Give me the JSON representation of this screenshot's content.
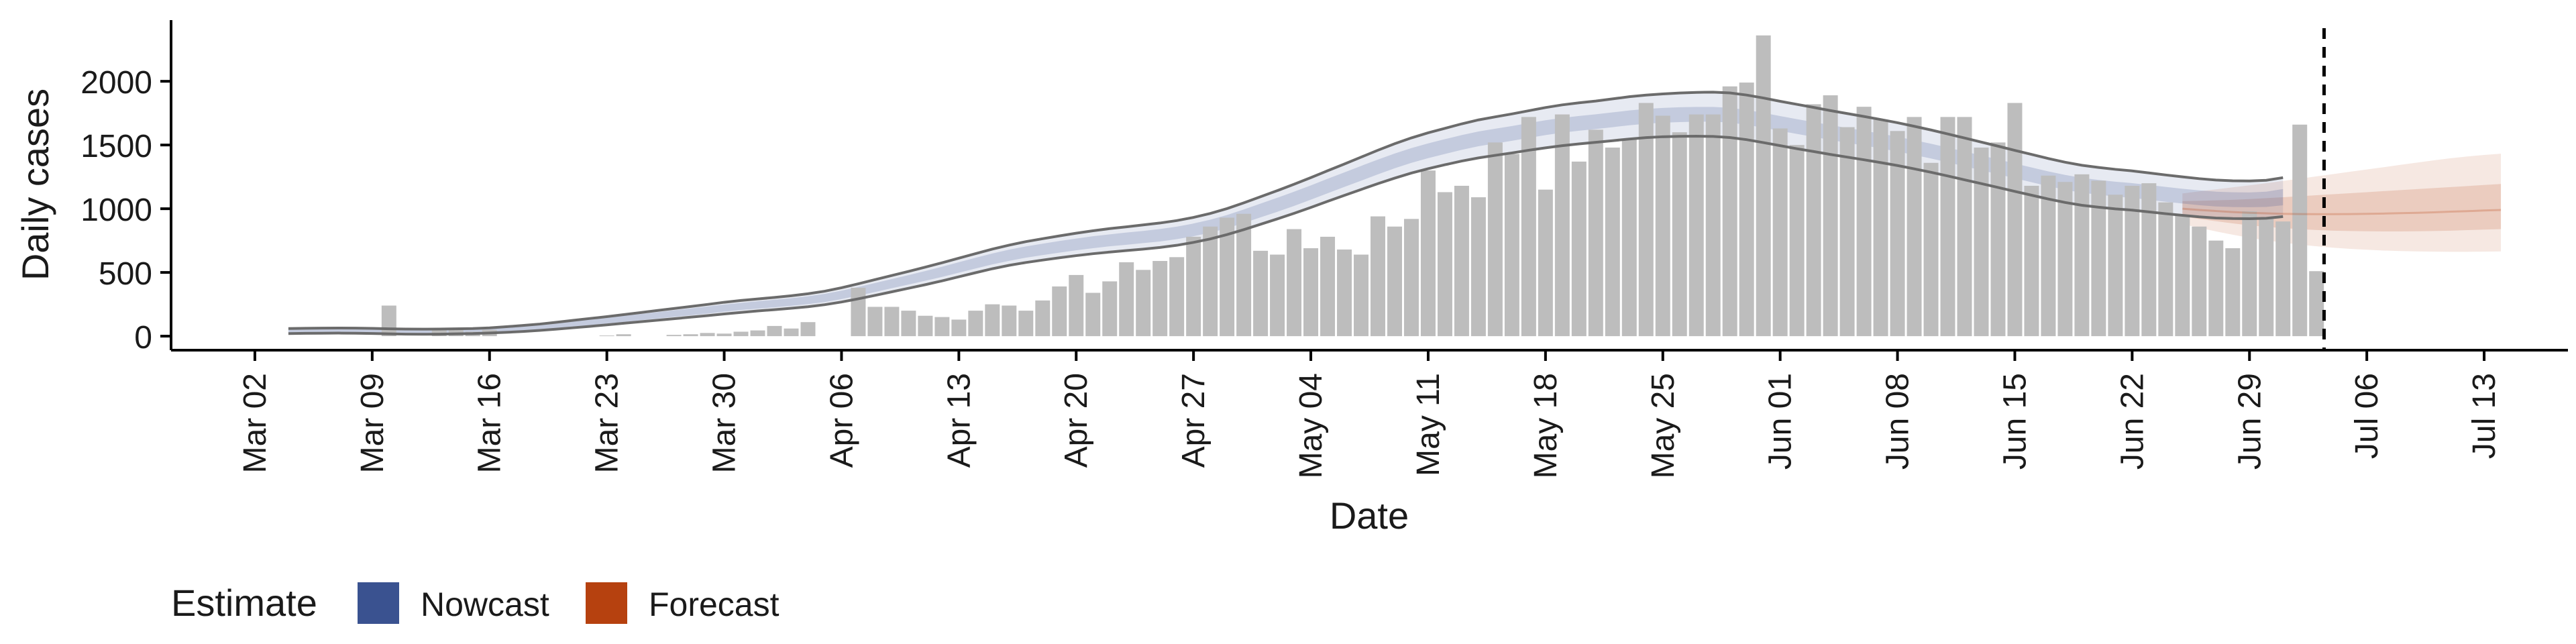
{
  "chart_data": {
    "type": "bar",
    "xlabel": "Date",
    "ylabel": "Daily cases",
    "x_ticks": [
      "2020-03-02",
      "2020-03-09",
      "2020-03-16",
      "2020-03-23",
      "2020-03-30",
      "2020-04-06",
      "2020-04-13",
      "2020-04-20",
      "2020-04-27",
      "2020-05-04",
      "2020-05-11",
      "2020-05-18",
      "2020-05-25",
      "2020-06-01",
      "2020-06-08",
      "2020-06-15",
      "2020-06-22",
      "2020-06-29",
      "2020-07-06",
      "2020-07-13"
    ],
    "x_tick_labels": [
      "Mar 02",
      "Mar 09",
      "Mar 16",
      "Mar 23",
      "Mar 30",
      "Apr 06",
      "Apr 13",
      "Apr 20",
      "Apr 27",
      "May 04",
      "May 11",
      "May 18",
      "May 25",
      "Jun 01",
      "Jun 08",
      "Jun 15",
      "Jun 22",
      "Jun 29",
      "Jul 06",
      "Jul 13"
    ],
    "xlim": [
      "2020-02-26",
      "2020-07-18"
    ],
    "y_ticks": [
      0,
      500,
      1000,
      1500,
      2000
    ],
    "ylim": [
      -110,
      2480
    ],
    "estimate_date": "2020-07-03",
    "grid": false,
    "legend": {
      "position": "bottom-left",
      "title": "Estimate",
      "items": [
        {
          "label": "Nowcast",
          "color": "#3a5290"
        },
        {
          "label": "Forecast",
          "color": "#b6410f"
        }
      ]
    },
    "bar_color": "#bdbdbd",
    "bars": {
      "start_date": "2020-03-02",
      "values": [
        0,
        0,
        0,
        0,
        0,
        0,
        0,
        0,
        240,
        0,
        0,
        60,
        55,
        35,
        50,
        0,
        0,
        0,
        0,
        0,
        0,
        5,
        15,
        0,
        0,
        10,
        15,
        25,
        20,
        35,
        45,
        80,
        60,
        110,
        0,
        0,
        380,
        230,
        230,
        200,
        160,
        150,
        130,
        200,
        250,
        240,
        200,
        280,
        390,
        480,
        340,
        430,
        580,
        520,
        590,
        620,
        780,
        860,
        930,
        960,
        670,
        640,
        840,
        690,
        780,
        680,
        640,
        940,
        860,
        920,
        1300,
        1130,
        1180,
        1090,
        1520,
        1430,
        1720,
        1150,
        1740,
        1370,
        1620,
        1480,
        1550,
        1830,
        1730,
        1600,
        1740,
        1740,
        1960,
        1990,
        2360,
        1630,
        1500,
        1820,
        1890,
        1640,
        1800,
        1700,
        1610,
        1720,
        1360,
        1720,
        1720,
        1480,
        1520,
        1830,
        1180,
        1260,
        1210,
        1270,
        1220,
        1110,
        1180,
        1200,
        1050,
        950,
        860,
        750,
        690,
        980,
        930,
        900,
        1660,
        510
      ]
    },
    "nowcast": {
      "start_date": "2020-03-04",
      "color": "#3a5290",
      "median": [
        40,
        42,
        43,
        44,
        43,
        41,
        38,
        36,
        35,
        36,
        38,
        40,
        45,
        52,
        60,
        70,
        82,
        95,
        108,
        121,
        135,
        149,
        163,
        177,
        191,
        205,
        220,
        233,
        245,
        256,
        268,
        282,
        300,
        324,
        352,
        382,
        412,
        442,
        473,
        505,
        539,
        573,
        606,
        635,
        660,
        681,
        701,
        720,
        737,
        752,
        765,
        778,
        792,
        810,
        834,
        863,
        899,
        941,
        986,
        1031,
        1078,
        1127,
        1178,
        1228,
        1278,
        1328,
        1375,
        1418,
        1455,
        1488,
        1520,
        1548,
        1570,
        1591,
        1614,
        1636,
        1655,
        1670,
        1683,
        1698,
        1713,
        1725,
        1733,
        1738,
        1741,
        1741,
        1734,
        1717,
        1694,
        1669,
        1645,
        1622,
        1598,
        1576,
        1554,
        1531,
        1507,
        1480,
        1452,
        1422,
        1391,
        1360,
        1329,
        1297,
        1266,
        1235,
        1207,
        1184,
        1168,
        1154,
        1143,
        1128,
        1113,
        1099,
        1086,
        1076,
        1071,
        1070,
        1074,
        1091
      ],
      "band50": {
        "lower_offset": [
          -18,
          -18,
          -18,
          -18,
          -18,
          -18,
          -18,
          -18,
          -18,
          -18,
          -18,
          -18,
          -18,
          -18,
          -20,
          -20,
          -20,
          -22,
          -22,
          -22,
          -24,
          -24,
          -25,
          -26,
          -27,
          -28,
          -28,
          -28,
          -29,
          -30,
          -30,
          -31,
          -32,
          -33,
          -34,
          -35,
          -36,
          -37,
          -38,
          -40,
          -41,
          -42,
          -43,
          -44,
          -44,
          -45,
          -46,
          -46,
          -47,
          -47,
          -48,
          -48,
          -49,
          -49,
          -50,
          -51,
          -52,
          -53,
          -54,
          -55,
          -56,
          -56,
          -57,
          -57,
          -58,
          -58,
          -58,
          -58,
          -58,
          -58,
          -58,
          -58,
          -58,
          -58,
          -58,
          -58,
          -58,
          -58,
          -58,
          -58,
          -58,
          -58,
          -58,
          -58,
          -58,
          -58,
          -58,
          -58,
          -58,
          -58,
          -58,
          -58,
          -58,
          -58,
          -58,
          -58,
          -58,
          -58,
          -58,
          -58,
          -58,
          -58,
          -58,
          -58,
          -58,
          -58,
          -58,
          -58,
          -58,
          -58,
          -58,
          -58,
          -58,
          -58,
          -58,
          -58,
          -58,
          -58,
          -60,
          -64
        ],
        "upper_offset": [
          18,
          18,
          18,
          18,
          18,
          18,
          18,
          18,
          18,
          18,
          18,
          18,
          18,
          18,
          20,
          20,
          20,
          22,
          22,
          22,
          24,
          24,
          25,
          26,
          27,
          28,
          28,
          28,
          29,
          30,
          30,
          31,
          32,
          33,
          34,
          35,
          36,
          37,
          38,
          40,
          41,
          42,
          43,
          44,
          44,
          45,
          46,
          46,
          47,
          47,
          48,
          48,
          49,
          49,
          50,
          51,
          52,
          53,
          54,
          55,
          56,
          56,
          57,
          57,
          58,
          58,
          58,
          58,
          58,
          58,
          58,
          58,
          58,
          58,
          58,
          58,
          58,
          58,
          58,
          58,
          58,
          58,
          58,
          58,
          58,
          58,
          58,
          58,
          58,
          58,
          58,
          58,
          58,
          58,
          58,
          58,
          58,
          58,
          58,
          58,
          58,
          58,
          58,
          58,
          58,
          58,
          58,
          58,
          58,
          58,
          58,
          58,
          58,
          58,
          58,
          58,
          58,
          58,
          60,
          64
        ]
      },
      "band90": {
        "lower": [
          20,
          22,
          23,
          24,
          23,
          21,
          18,
          16,
          15,
          16,
          18,
          20,
          25,
          30,
          37,
          45,
          55,
          66,
          77,
          89,
          101,
          113,
          125,
          137,
          149,
          161,
          174,
          186,
          198,
          208,
          219,
          231,
          247,
          268,
          293,
          320,
          348,
          376,
          404,
          434,
          466,
          498,
          529,
          556,
          578,
          597,
          615,
          632,
          647,
          660,
          672,
          683,
          696,
          713,
          736,
          763,
          797,
          836,
          878,
          920,
          964,
          1010,
          1058,
          1105,
          1151,
          1197,
          1240,
          1280,
          1314,
          1345,
          1374,
          1399,
          1419,
          1438,
          1459,
          1478,
          1495,
          1509,
          1521,
          1534,
          1547,
          1558,
          1565,
          1568,
          1569,
          1567,
          1559,
          1542,
          1519,
          1495,
          1471,
          1449,
          1426,
          1405,
          1384,
          1362,
          1339,
          1313,
          1286,
          1257,
          1227,
          1197,
          1167,
          1136,
          1106,
          1076,
          1049,
          1027,
          1012,
          999,
          989,
          975,
          961,
          948,
          936,
          927,
          923,
          922,
          925,
          938
        ],
        "upper": [
          60,
          62,
          63,
          64,
          63,
          61,
          58,
          56,
          55,
          56,
          58,
          60,
          65,
          74,
          84,
          95,
          109,
          124,
          139,
          153,
          169,
          185,
          201,
          217,
          233,
          249,
          266,
          280,
          292,
          304,
          317,
          333,
          353,
          380,
          411,
          444,
          476,
          508,
          542,
          576,
          612,
          648,
          683,
          714,
          742,
          765,
          787,
          808,
          827,
          844,
          858,
          873,
          888,
          907,
          932,
          963,
          1001,
          1046,
          1094,
          1142,
          1192,
          1244,
          1298,
          1351,
          1405,
          1459,
          1510,
          1556,
          1596,
          1631,
          1666,
          1697,
          1721,
          1744,
          1769,
          1794,
          1815,
          1831,
          1845,
          1862,
          1879,
          1892,
          1901,
          1908,
          1913,
          1915,
          1909,
          1892,
          1869,
          1843,
          1819,
          1795,
          1770,
          1747,
          1724,
          1700,
          1675,
          1647,
          1618,
          1587,
          1555,
          1523,
          1491,
          1458,
          1426,
          1394,
          1365,
          1341,
          1324,
          1309,
          1297,
          1281,
          1265,
          1250,
          1236,
          1225,
          1219,
          1218,
          1223,
          1244
        ]
      }
    },
    "forecast": {
      "start_date": "2020-06-25",
      "color": "#b6410f",
      "median": [
        1000,
        990,
        982,
        974,
        968,
        964,
        960,
        958,
        957,
        957,
        958,
        960,
        962,
        965,
        968,
        972,
        977,
        981,
        986,
        990
      ],
      "band50": {
        "lower": [
          940,
          920,
          902,
          885,
          870,
          858,
          848,
          840,
          833,
          828,
          825,
          823,
          822,
          822,
          823,
          825,
          828,
          832,
          836,
          840
        ],
        "upper": [
          1060,
          1062,
          1066,
          1070,
          1076,
          1083,
          1090,
          1098,
          1106,
          1114,
          1122,
          1130,
          1138,
          1146,
          1154,
          1162,
          1170,
          1178,
          1186,
          1194
        ]
      },
      "band90": {
        "lower": [
          880,
          850,
          822,
          796,
          772,
          752,
          734,
          718,
          705,
          694,
          685,
          678,
          672,
          668,
          665,
          663,
          662,
          662,
          663,
          665
        ],
        "upper": [
          1120,
          1136,
          1152,
          1168,
          1184,
          1200,
          1218,
          1236,
          1254,
          1272,
          1290,
          1308,
          1326,
          1344,
          1362,
          1380,
          1396,
          1410,
          1422,
          1432
        ]
      }
    },
    "outline_color": "#6b6b6b"
  }
}
